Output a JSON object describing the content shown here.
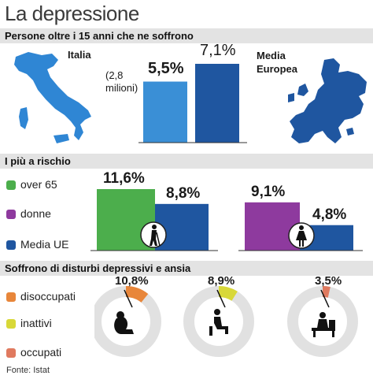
{
  "title": "La depressione",
  "sections": {
    "s1": "Persone oltre i 15 anni che ne soffrono",
    "s2": "I più a rischio",
    "s3": "Soffrono di disturbi depressivi e ansia"
  },
  "panel1": {
    "italy_label": "Italia",
    "europe_label": "Media Europea",
    "italy_note": "(2,8 milioni)",
    "italy_value_label": "5,5%",
    "europe_value_label": "7,1%"
  },
  "panel2": {
    "legend": [
      "over 65",
      "donne",
      "Media UE"
    ],
    "labels": {
      "over65": "11,6%",
      "ue1": "8,8%",
      "donne": "9,1%",
      "ue2": "4,8%"
    }
  },
  "panel3": {
    "legend": [
      "disoccupati",
      "inattivi",
      "occupati"
    ],
    "labels": [
      "10,8%",
      "8,9%",
      "3,5%"
    ]
  },
  "source": "Fonte: Istat",
  "colors": {
    "blue_light": "#3a8fd6",
    "blue_dark": "#1f56a0",
    "green": "#4cae4c",
    "purple": "#8e3a9e",
    "orange": "#e8863a",
    "yellow": "#d8d838",
    "salmon": "#e07a5f",
    "ring_gray": "#e1e1e1"
  },
  "chart_data": [
    {
      "type": "bar",
      "title": "Persone oltre i 15 anni che ne soffrono",
      "categories": [
        "Italia",
        "Media Europea"
      ],
      "values": [
        5.5,
        7.1
      ],
      "ylim": [
        0,
        7.1
      ],
      "grid": false
    },
    {
      "type": "bar",
      "title": "I più a rischio",
      "categories": [
        "over 65",
        "donne"
      ],
      "series": [
        {
          "name": "over 65",
          "values": [
            11.6,
            null
          ]
        },
        {
          "name": "donne",
          "values": [
            null,
            9.1
          ]
        },
        {
          "name": "Media UE",
          "values": [
            8.8,
            4.8
          ]
        }
      ],
      "ylim": [
        0,
        11.6
      ],
      "grid": false
    },
    {
      "type": "pie",
      "title": "Soffrono di disturbi depressivi e ansia",
      "categories": [
        "disoccupati",
        "inattivi",
        "occupati"
      ],
      "values": [
        10.8,
        8.9,
        3.5
      ],
      "ylim": [
        0,
        100
      ]
    }
  ]
}
